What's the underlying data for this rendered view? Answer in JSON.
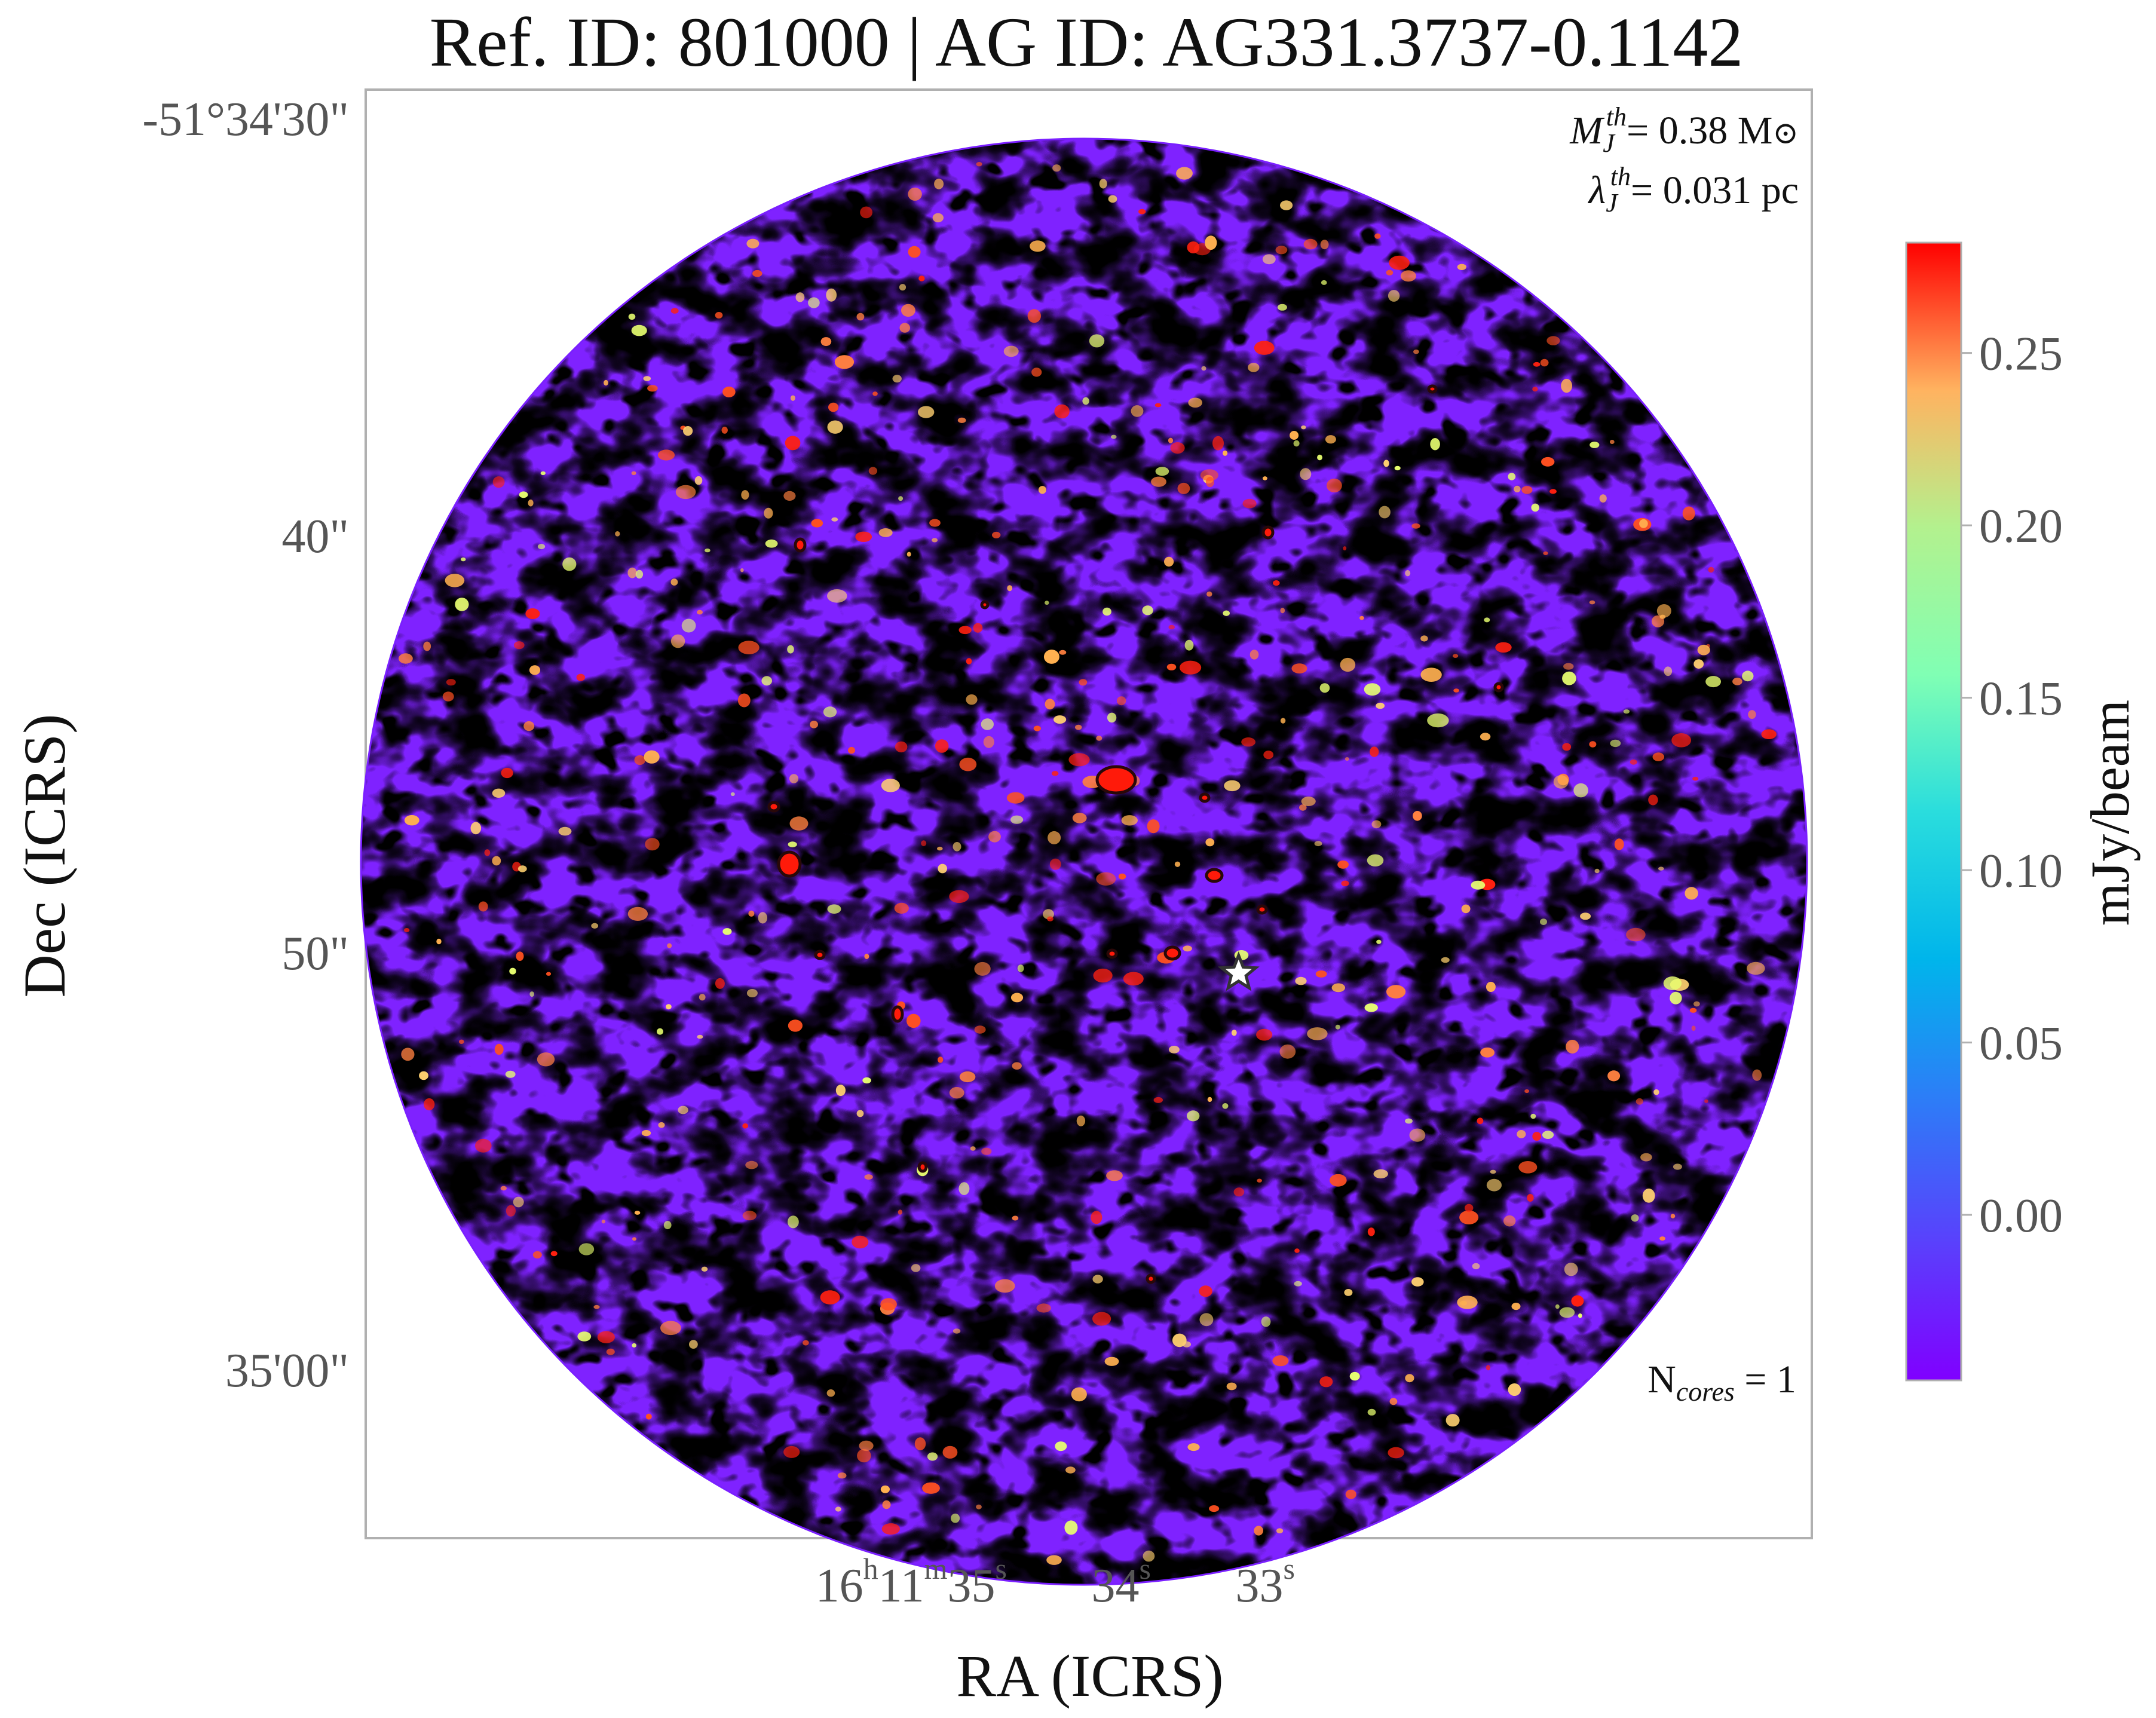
{
  "chart_data": {
    "type": "heatmap",
    "title": "Ref. ID: 801000 | AG ID: AG331.3737-0.1142",
    "xlabel": "RA (ICRS)",
    "ylabel": "Dec (ICRS)",
    "ra_ticks": [
      {
        "h": "16",
        "m": "11",
        "s": "35",
        "seconds": 35
      },
      {
        "h": "",
        "m": "",
        "s": "34",
        "seconds": 34
      },
      {
        "h": "",
        "m": "",
        "s": "33",
        "seconds": 33
      }
    ],
    "dec_ticks": [
      {
        "label": "-51°34'30\"",
        "arcsec": 0
      },
      {
        "label": "40\"",
        "arcsec": 10
      },
      {
        "label": "50\"",
        "arcsec": 20
      },
      {
        "label": "35'00\"",
        "arcsec": 30
      }
    ],
    "colorbar": {
      "label": "mJy/beam",
      "colormap": "rainbow",
      "range": [
        -0.048,
        0.282
      ],
      "ticks": [
        "0.00",
        "0.05",
        "0.10",
        "0.15",
        "0.20",
        "0.25"
      ],
      "tick_values": [
        0.0,
        0.05,
        0.1,
        0.15,
        0.2,
        0.25
      ]
    },
    "annotations": {
      "mass_prefix": "M",
      "mass_sub": "J",
      "mass_sup": "th",
      "mass_value": "= 0.38 M",
      "mass_unit_symbol": "⊙",
      "length_prefix": "λ",
      "length_sub": "J",
      "length_sup": "th",
      "length_value": "= 0.031 pc",
      "ncores_prefix": "N",
      "ncores_sub": "cores",
      "ncores_value": " = 1"
    },
    "cores": [
      {
        "name": "core-1",
        "marker": "star",
        "ra_offset_s": -0.8,
        "dec_offset_arcsec": 20.5
      }
    ],
    "grid": false,
    "field_shape": "circular primary beam"
  }
}
